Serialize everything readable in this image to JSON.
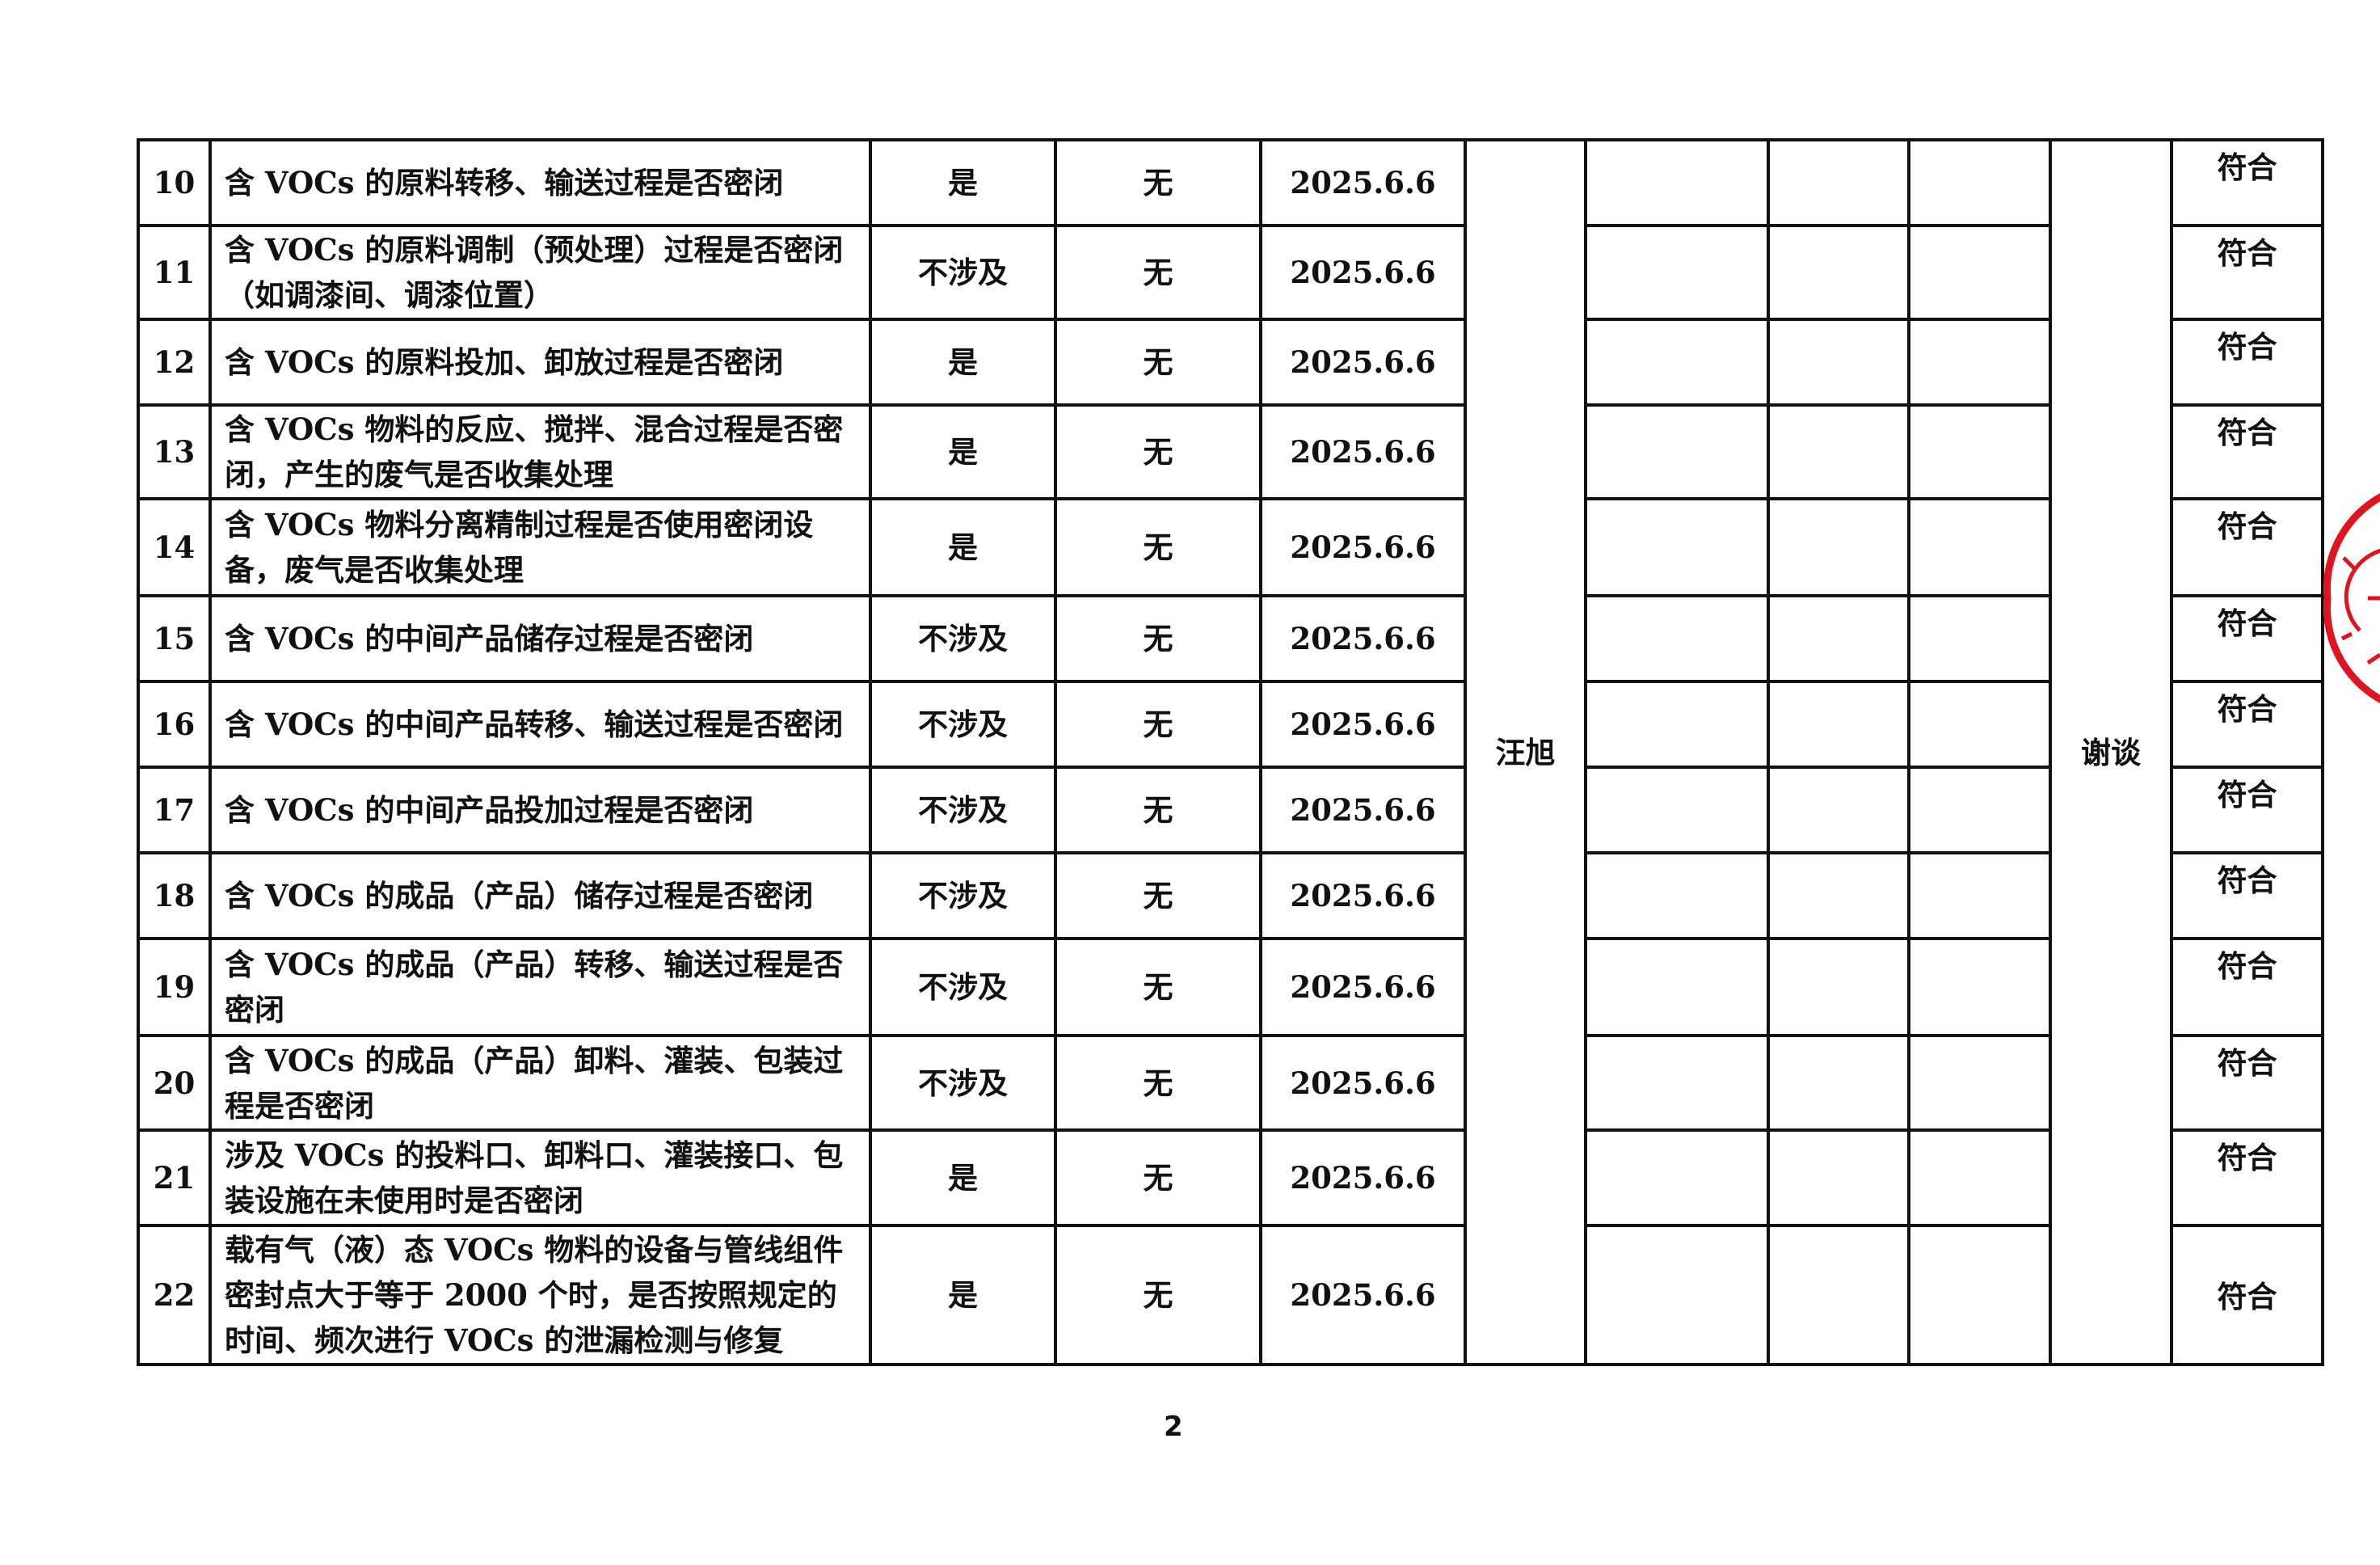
{
  "rows": [
    {
      "no": "10",
      "item": "含 VOCs 的原料转移、输送过程是否密闭",
      "status": "是",
      "issue": "无",
      "date": "2025.6.6",
      "result": "符合"
    },
    {
      "no": "11",
      "item": "含 VOCs 的原料调制（预处理）过程是否密闭（如调漆间、调漆位置）",
      "status": "不涉及",
      "issue": "无",
      "date": "2025.6.6",
      "result": "符合"
    },
    {
      "no": "12",
      "item": "含 VOCs 的原料投加、卸放过程是否密闭",
      "status": "是",
      "issue": "无",
      "date": "2025.6.6",
      "result": "符合"
    },
    {
      "no": "13",
      "item": "含 VOCs 物料的反应、搅拌、混合过程是否密闭，产生的废气是否收集处理",
      "status": "是",
      "issue": "无",
      "date": "2025.6.6",
      "result": "符合"
    },
    {
      "no": "14",
      "item": "含 VOCs 物料分离精制过程是否使用密闭设备，废气是否收集处理",
      "status": "是",
      "issue": "无",
      "date": "2025.6.6",
      "result": "符合"
    },
    {
      "no": "15",
      "item": "含 VOCs 的中间产品储存过程是否密闭",
      "status": "不涉及",
      "issue": "无",
      "date": "2025.6.6",
      "result": "符合"
    },
    {
      "no": "16",
      "item": "含 VOCs 的中间产品转移、输送过程是否密闭",
      "status": "不涉及",
      "issue": "无",
      "date": "2025.6.6",
      "result": "符合"
    },
    {
      "no": "17",
      "item": "含 VOCs 的中间产品投加过程是否密闭",
      "status": "不涉及",
      "issue": "无",
      "date": "2025.6.6",
      "result": "符合"
    },
    {
      "no": "18",
      "item": "含 VOCs 的成品（产品）储存过程是否密闭",
      "status": "不涉及",
      "issue": "无",
      "date": "2025.6.6",
      "result": "符合"
    },
    {
      "no": "19",
      "item": "含 VOCs 的成品（产品）转移、输送过程是否密闭",
      "status": "不涉及",
      "issue": "无",
      "date": "2025.6.6",
      "result": "符合"
    },
    {
      "no": "20",
      "item": "含 VOCs 的成品（产品）卸料、灌装、包装过程是否密闭",
      "status": "不涉及",
      "issue": "无",
      "date": "2025.6.6",
      "result": "符合"
    },
    {
      "no": "21",
      "item": "涉及 VOCs 的投料口、卸料口、灌装接口、包装设施在未使用时是否密闭",
      "status": "是",
      "issue": "无",
      "date": "2025.6.6",
      "result": "符合"
    },
    {
      "no": "22",
      "item": "载有气（液）态 VOCs 物料的设备与管线组件密封点大于等于 2000 个时，是否按照规定的时间、频次进行 VOCs 的泄漏检测与修复",
      "status": "是",
      "issue": "无",
      "date": "2025.6.6",
      "result": "符合"
    }
  ],
  "inspector": "汪旭",
  "method": "谢谈",
  "page_number": "2",
  "stamp_color": "#e0141e"
}
